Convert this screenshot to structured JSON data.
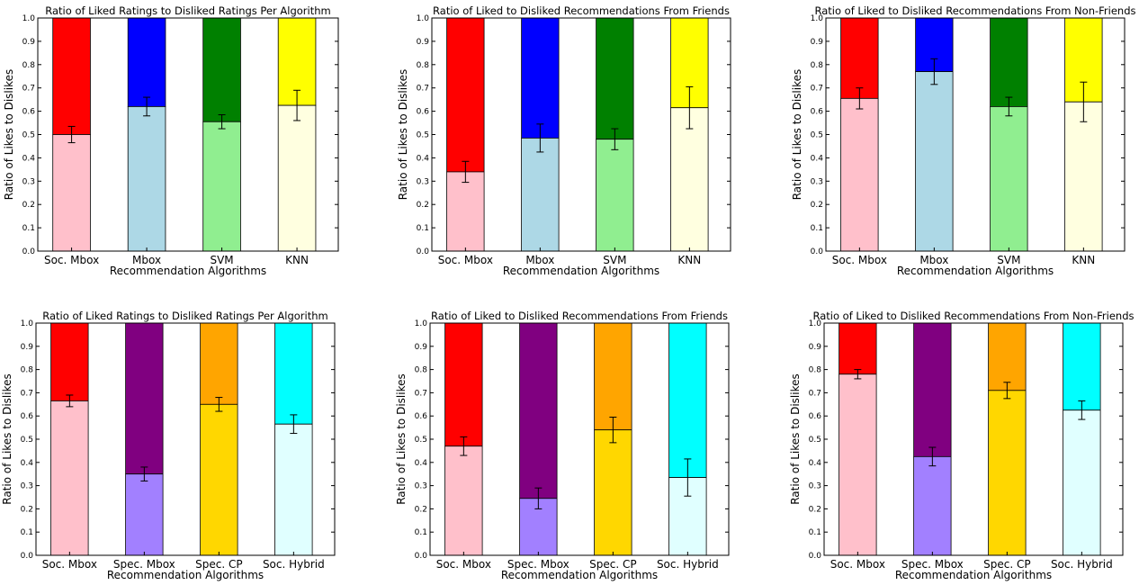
{
  "chart_data": [
    {
      "type": "bar",
      "stacked": true,
      "title": "Ratio of Liked Ratings to Disliked Ratings Per Algorithm",
      "xlabel": "Recommendation Algorithms",
      "ylabel": "Ratio of Likes to Dislikes",
      "ylim": [
        0,
        1
      ],
      "yticks": [
        "0.0",
        "0.1",
        "0.2",
        "0.3",
        "0.4",
        "0.5",
        "0.6",
        "0.7",
        "0.8",
        "0.9",
        "1.0"
      ],
      "categories": [
        "Soc. Mbox",
        "Mbox",
        "SVM",
        "KNN"
      ],
      "values": [
        0.5,
        0.62,
        0.555,
        0.625
      ],
      "errors": [
        0.035,
        0.04,
        0.03,
        0.065
      ],
      "like_colors": [
        "#ffc0cb",
        "#add8e6",
        "#90ee90",
        "#ffffe0"
      ],
      "dislike_colors": [
        "#ff0000",
        "#0000ff",
        "#008000",
        "#ffff00"
      ]
    },
    {
      "type": "bar",
      "stacked": true,
      "title": "Ratio of Liked to Disliked Recommendations From Friends",
      "xlabel": "Recommendation Algorithms",
      "ylabel": "Ratio of Likes to Dislikes",
      "ylim": [
        0,
        1
      ],
      "yticks": [
        "0.0",
        "0.1",
        "0.2",
        "0.3",
        "0.4",
        "0.5",
        "0.6",
        "0.7",
        "0.8",
        "0.9",
        "1.0"
      ],
      "categories": [
        "Soc. Mbox",
        "Mbox",
        "SVM",
        "KNN"
      ],
      "values": [
        0.34,
        0.485,
        0.48,
        0.615
      ],
      "errors": [
        0.045,
        0.06,
        0.045,
        0.09
      ],
      "like_colors": [
        "#ffc0cb",
        "#add8e6",
        "#90ee90",
        "#ffffe0"
      ],
      "dislike_colors": [
        "#ff0000",
        "#0000ff",
        "#008000",
        "#ffff00"
      ]
    },
    {
      "type": "bar",
      "stacked": true,
      "title": "Ratio of Liked to Disliked Recommendations From Non-Friends",
      "xlabel": "Recommendation Algorithms",
      "ylabel": "Ratio of Likes to Dislikes",
      "ylim": [
        0,
        1
      ],
      "yticks": [
        "0.0",
        "0.1",
        "0.2",
        "0.3",
        "0.4",
        "0.5",
        "0.6",
        "0.7",
        "0.8",
        "0.9",
        "1.0"
      ],
      "categories": [
        "Soc. Mbox",
        "Mbox",
        "SVM",
        "KNN"
      ],
      "values": [
        0.655,
        0.77,
        0.62,
        0.64
      ],
      "errors": [
        0.045,
        0.055,
        0.04,
        0.085
      ],
      "like_colors": [
        "#ffc0cb",
        "#add8e6",
        "#90ee90",
        "#ffffe0"
      ],
      "dislike_colors": [
        "#ff0000",
        "#0000ff",
        "#008000",
        "#ffff00"
      ]
    },
    {
      "type": "bar",
      "stacked": true,
      "title": "Ratio of Liked Ratings to Disliked Ratings Per Algorithm",
      "xlabel": "Recommendation Algorithms",
      "ylabel": "Ratio of Likes to Dislikes",
      "ylim": [
        0,
        1
      ],
      "yticks": [
        "0.0",
        "0.1",
        "0.2",
        "0.3",
        "0.4",
        "0.5",
        "0.6",
        "0.7",
        "0.8",
        "0.9",
        "1.0"
      ],
      "categories": [
        "Soc. Mbox",
        "Spec. Mbox",
        "Spec. CP",
        "Soc. Hybrid"
      ],
      "values": [
        0.665,
        0.35,
        0.65,
        0.565
      ],
      "errors": [
        0.025,
        0.03,
        0.03,
        0.04
      ],
      "like_colors": [
        "#ffc0cb",
        "#a280ff",
        "#ffd700",
        "#e0ffff"
      ],
      "dislike_colors": [
        "#ff0000",
        "#800080",
        "#ffa500",
        "#00ffff"
      ]
    },
    {
      "type": "bar",
      "stacked": true,
      "title": "Ratio of Liked to Disliked Recommendations From Friends",
      "xlabel": "Recommendation Algorithms",
      "ylabel": "Ratio of Likes to Dislikes",
      "ylim": [
        0,
        1
      ],
      "yticks": [
        "0.0",
        "0.1",
        "0.2",
        "0.3",
        "0.4",
        "0.5",
        "0.6",
        "0.7",
        "0.8",
        "0.9",
        "1.0"
      ],
      "categories": [
        "Soc. Mbox",
        "Spec. Mbox",
        "Spec. CP",
        "Soc. Hybrid"
      ],
      "values": [
        0.47,
        0.245,
        0.54,
        0.335
      ],
      "errors": [
        0.04,
        0.045,
        0.055,
        0.08
      ],
      "like_colors": [
        "#ffc0cb",
        "#a280ff",
        "#ffd700",
        "#e0ffff"
      ],
      "dislike_colors": [
        "#ff0000",
        "#800080",
        "#ffa500",
        "#00ffff"
      ]
    },
    {
      "type": "bar",
      "stacked": true,
      "title": "Ratio of Liked to Disliked Recommendations From Non-Friends",
      "xlabel": "Recommendation Algorithms",
      "ylabel": "Ratio of Likes to Dislikes",
      "ylim": [
        0,
        1
      ],
      "yticks": [
        "0.0",
        "0.1",
        "0.2",
        "0.3",
        "0.4",
        "0.5",
        "0.6",
        "0.7",
        "0.8",
        "0.9",
        "1.0"
      ],
      "categories": [
        "Soc. Mbox",
        "Spec. Mbox",
        "Spec. CP",
        "Soc. Hybrid"
      ],
      "values": [
        0.78,
        0.425,
        0.71,
        0.625
      ],
      "errors": [
        0.02,
        0.04,
        0.035,
        0.04
      ],
      "like_colors": [
        "#ffc0cb",
        "#a280ff",
        "#ffd700",
        "#e0ffff"
      ],
      "dislike_colors": [
        "#ff0000",
        "#800080",
        "#ffa500",
        "#00ffff"
      ]
    }
  ]
}
